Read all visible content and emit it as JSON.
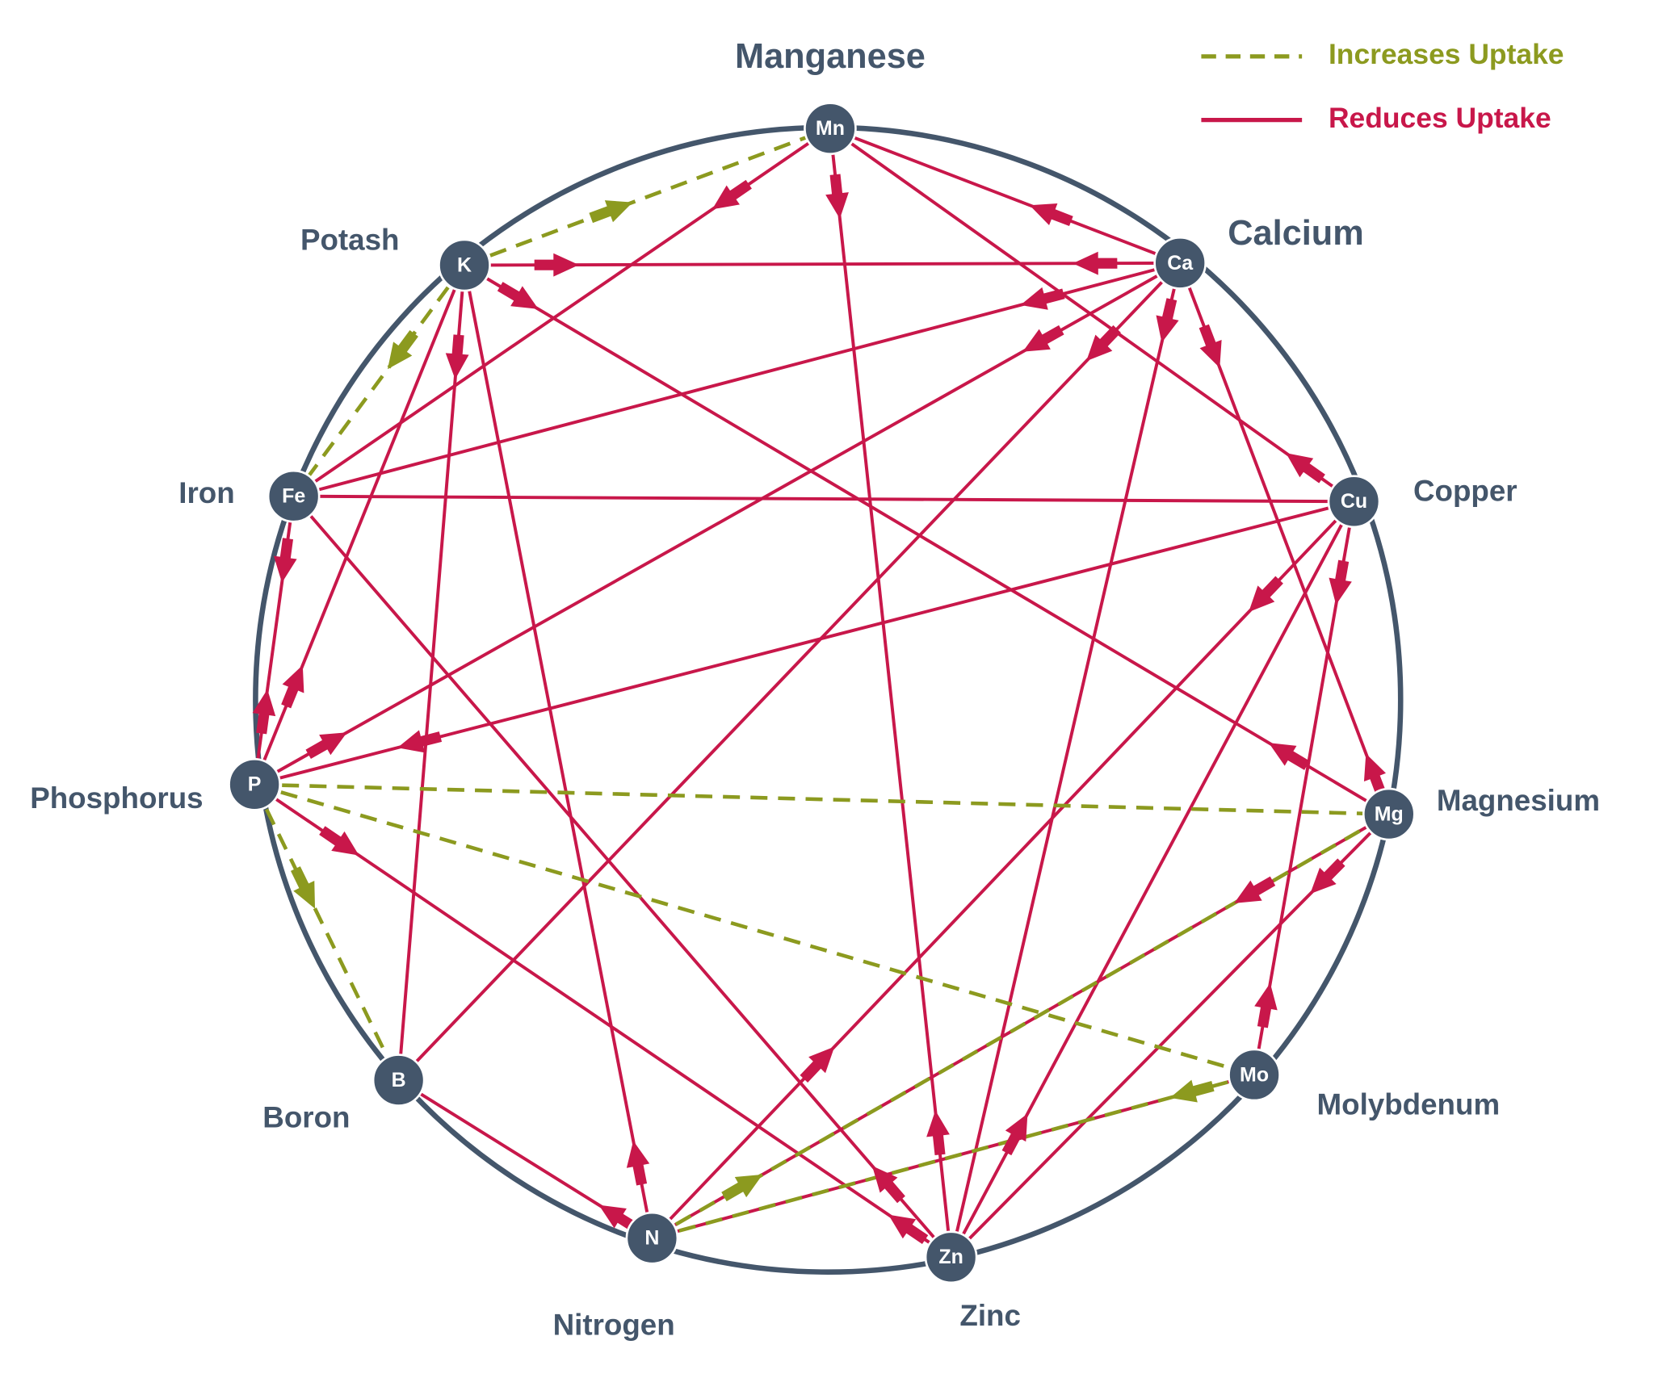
{
  "legend": {
    "increases": "Increases Uptake",
    "reduces": "Reduces Uptake"
  },
  "nodes": [
    {
      "symbol": "Mn",
      "name": "Manganese"
    },
    {
      "symbol": "Ca",
      "name": "Calcium"
    },
    {
      "symbol": "Cu",
      "name": "Copper"
    },
    {
      "symbol": "Mg",
      "name": "Magnesium"
    },
    {
      "symbol": "Mo",
      "name": "Molybdenum"
    },
    {
      "symbol": "Zn",
      "name": "Zinc"
    },
    {
      "symbol": "N",
      "name": "Nitrogen"
    },
    {
      "symbol": "B",
      "name": "Boron"
    },
    {
      "symbol": "P",
      "name": "Phosphorus"
    },
    {
      "symbol": "Fe",
      "name": "Iron"
    },
    {
      "symbol": "K",
      "name": "Potash"
    }
  ]
}
